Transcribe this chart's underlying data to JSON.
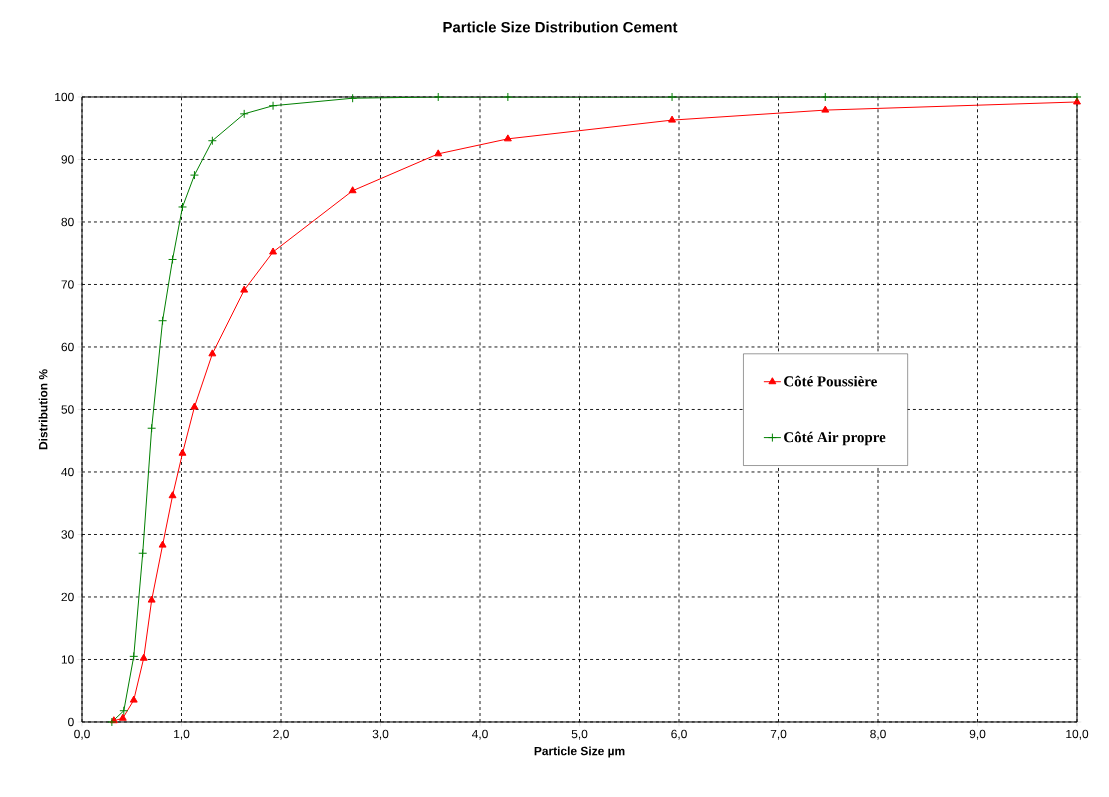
{
  "chart_data": {
    "type": "line",
    "title": "Particle Size Distribution Cement",
    "xlabel": "Particle Size µm",
    "ylabel": "Distribution %",
    "xlim": [
      0,
      10
    ],
    "ylim": [
      0,
      100
    ],
    "xticks": [
      {
        "value": 0,
        "label": "0,0"
      },
      {
        "value": 1,
        "label": "1,0"
      },
      {
        "value": 2,
        "label": "2,0"
      },
      {
        "value": 3,
        "label": "3,0"
      },
      {
        "value": 4,
        "label": "4,0"
      },
      {
        "value": 5,
        "label": "5,0"
      },
      {
        "value": 6,
        "label": "6,0"
      },
      {
        "value": 7,
        "label": "7,0"
      },
      {
        "value": 8,
        "label": "8,0"
      },
      {
        "value": 9,
        "label": "9,0"
      },
      {
        "value": 10,
        "label": "10,0"
      }
    ],
    "yticks": [
      0,
      10,
      20,
      30,
      40,
      50,
      60,
      70,
      80,
      90,
      100
    ],
    "grid": true,
    "legend": "right",
    "series": [
      {
        "name": "Côté Poussière",
        "color": "#ff0000",
        "marker": "triangle",
        "x": [
          0.32,
          0.41,
          0.52,
          0.62,
          0.7,
          0.81,
          0.91,
          1.01,
          1.13,
          1.31,
          1.63,
          1.92,
          2.72,
          3.58,
          4.28,
          5.93,
          7.47,
          10
        ],
        "values": [
          0.2,
          0.6,
          3.5,
          10.2,
          19.5,
          28.3,
          36.2,
          43,
          50.4,
          58.9,
          69.1,
          75.2,
          85,
          90.9,
          93.3,
          96.3,
          97.9,
          99.2
        ]
      },
      {
        "name": "Côté Air propre",
        "color": "#008000",
        "marker": "cross",
        "x": [
          0.3,
          0.42,
          0.52,
          0.61,
          0.7,
          0.81,
          0.91,
          1.01,
          1.13,
          1.31,
          1.63,
          1.92,
          2.72,
          3.58,
          4.28,
          5.93,
          7.47,
          10
        ],
        "values": [
          0,
          1.8,
          10.5,
          27,
          47,
          64.2,
          74,
          82.4,
          87.5,
          93,
          97.3,
          98.6,
          99.8,
          100,
          100,
          100,
          100,
          100
        ]
      }
    ]
  }
}
